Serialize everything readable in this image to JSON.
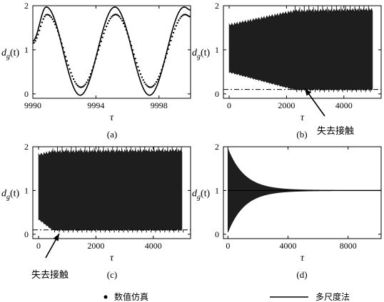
{
  "figure": {
    "legend": {
      "numeric_label": "数值仿真",
      "multiscale_label": "多尺度法",
      "numeric_marker": "dot",
      "multiscale_marker": "solid-line"
    },
    "annotation_text": "失去接触",
    "colors": {
      "ink": "#000000",
      "band": "#1e1e1e"
    }
  },
  "chart_data": [
    {
      "panel": "(a)",
      "type": "line",
      "ylabel_main": "d",
      "ylabel_sub": "g",
      "ylabel_arg": "(t)",
      "xlabel": "τ",
      "xlim": [
        9990,
        10000
      ],
      "ylim": [
        -0.1,
        2.0
      ],
      "xticks": [
        9990,
        9994,
        9998
      ],
      "yticks": [
        0,
        1,
        2
      ],
      "series": [
        {
          "kind": "multiscale",
          "style": "solid",
          "x": [
            9990,
            9990.85,
            9993.0,
            9995.2,
            9997.4,
            9999.6,
            10000
          ],
          "y": [
            1.2,
            1.97,
            -0.03,
            1.97,
            -0.03,
            1.97,
            1.9
          ]
        },
        {
          "kind": "numeric",
          "style": "dotted",
          "x": [
            9990,
            9990.9,
            9993.05,
            9995.25,
            9997.45,
            9999.65,
            10000
          ],
          "y": [
            1.15,
            1.8,
            0.15,
            1.8,
            0.15,
            1.8,
            1.75
          ]
        }
      ]
    },
    {
      "panel": "(b)",
      "type": "area",
      "ylabel_main": "d",
      "ylabel_sub": "g",
      "ylabel_arg": "(t)",
      "xlabel": "τ",
      "xlim": [
        -200,
        5300
      ],
      "ylim": [
        -0.1,
        2.0
      ],
      "xticks": [
        0,
        2000,
        4000
      ],
      "yticks": [
        0,
        1,
        2
      ],
      "band": {
        "x": [
          0,
          2300,
          5000
        ],
        "upper": [
          1.55,
          1.87,
          1.9
        ],
        "lower": [
          0.5,
          0.1,
          0.1
        ]
      },
      "contact_loss_level": 0.1,
      "contact_loss_tau": 2300
    },
    {
      "panel": "(c)",
      "type": "area",
      "ylabel_main": "d",
      "ylabel_sub": "g",
      "ylabel_arg": "(t)",
      "xlabel": "τ",
      "xlim": [
        -200,
        5300
      ],
      "ylim": [
        -0.1,
        2.0
      ],
      "xticks": [
        0,
        2000,
        4000
      ],
      "yticks": [
        0,
        1,
        2
      ],
      "band": {
        "x": [
          0,
          500,
          5000
        ],
        "upper": [
          1.8,
          1.88,
          1.9
        ],
        "lower": [
          0.35,
          0.1,
          0.1
        ]
      },
      "contact_loss_level": 0.1,
      "contact_loss_tau": 500
    },
    {
      "panel": "(d)",
      "type": "area",
      "ylabel_main": "d",
      "ylabel_sub": "g",
      "ylabel_arg": "(t)",
      "xlabel": "τ",
      "xlim": [
        -300,
        10200
      ],
      "ylim": [
        -0.1,
        2.0
      ],
      "xticks": [
        0,
        4000,
        8000
      ],
      "yticks": [
        0,
        1,
        2
      ],
      "center": 1.0,
      "initial_amplitude": 0.95,
      "decay_time": 1100
    }
  ]
}
